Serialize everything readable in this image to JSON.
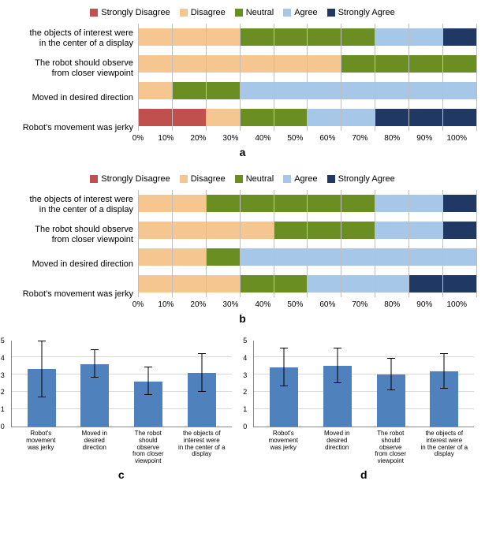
{
  "legend": {
    "items": [
      {
        "label": "Strongly Disagree",
        "color": "#c0504d"
      },
      {
        "label": "Disagree",
        "color": "#f6c690"
      },
      {
        "label": "Neutral",
        "color": "#6b8e23"
      },
      {
        "label": "Agree",
        "color": "#a6c7e8"
      },
      {
        "label": "Strongly Agree",
        "color": "#1f3864"
      }
    ]
  },
  "panelA": {
    "label": "a",
    "categories": [
      "the objects of interest were\nin the center of a display",
      "The robot should observe\nfrom closer viewpoint",
      "Moved in desired direction",
      "Robot's movement was jerky"
    ],
    "series": [
      [
        0,
        30,
        40,
        20,
        10
      ],
      [
        0,
        60,
        40,
        0,
        0
      ],
      [
        0,
        10,
        20,
        70,
        0
      ],
      [
        20,
        10,
        20,
        20,
        30
      ]
    ],
    "xticks": [
      "0%",
      "10%",
      "20%",
      "30%",
      "40%",
      "50%",
      "60%",
      "70%",
      "80%",
      "90%",
      "100%"
    ]
  },
  "panelB": {
    "label": "b",
    "categories": [
      "the objects of interest were\nin the center of a display",
      "The robot should observe\nfrom closer viewpoint",
      "Moved in desired direction",
      "Robot's movement was jerky"
    ],
    "series": [
      [
        0,
        20,
        50,
        20,
        10
      ],
      [
        0,
        40,
        30,
        20,
        10
      ],
      [
        0,
        20,
        10,
        70,
        0
      ],
      [
        0,
        30,
        20,
        30,
        20
      ]
    ],
    "xticks": [
      "0%",
      "10%",
      "20%",
      "30%",
      "40%",
      "50%",
      "60%",
      "70%",
      "80%",
      "90%",
      "100%"
    ]
  },
  "panelC": {
    "label": "c",
    "ylim": [
      0,
      5
    ],
    "yticks": [
      0,
      1,
      2,
      3,
      4,
      5
    ],
    "bar_color": "#4f81bd",
    "categories": [
      "Robot's movement\nwas jerky",
      "Moved in desired\ndirection",
      "The robot should\nobserve\nfrom closer\nviewpoint",
      "the objects of\ninterest were\nin the center of a\ndisplay"
    ],
    "values": [
      3.3,
      3.6,
      2.6,
      3.1
    ],
    "err": [
      1.6,
      0.8,
      0.8,
      1.1
    ]
  },
  "panelD": {
    "label": "d",
    "ylim": [
      0,
      5
    ],
    "yticks": [
      0,
      1,
      2,
      3,
      4,
      5
    ],
    "bar_color": "#4f81bd",
    "categories": [
      "Robot's movement\nwas jerky",
      "Moved in desired\ndirection",
      "The robot should\nobserve\nfrom closer\nviewpoint",
      "the objects of\ninterest were\nin the center of a\ndisplay"
    ],
    "values": [
      3.4,
      3.5,
      3.0,
      3.2
    ],
    "err": [
      1.1,
      1.0,
      0.9,
      1.0
    ]
  }
}
